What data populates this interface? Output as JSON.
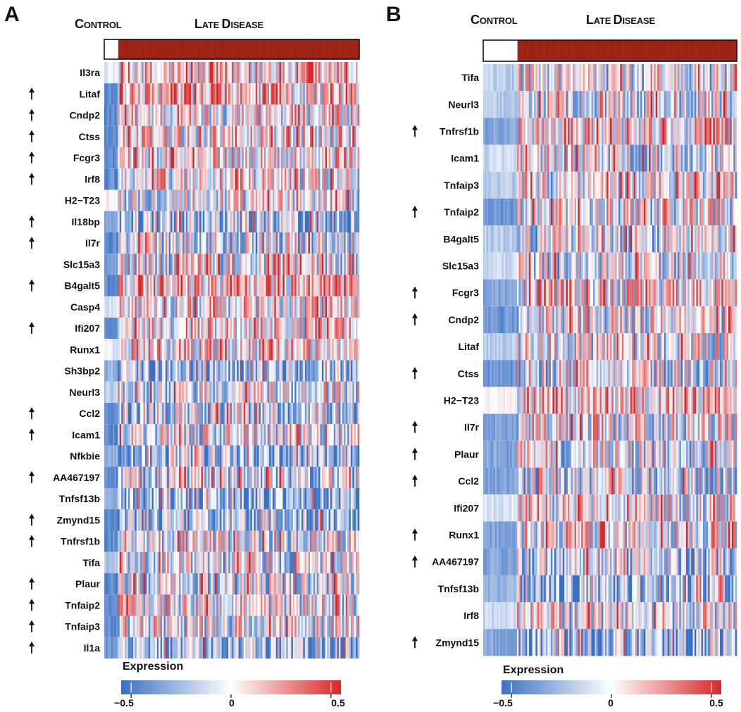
{
  "chart_data": [
    {
      "type": "heatmap",
      "panel_label": "A",
      "group_labels": {
        "control": {
          "cap": "C",
          "rest": "ONTROL"
        },
        "disease": {
          "cap1": "L",
          "rest1": "ATE ",
          "cap2": "D",
          "rest2": "ISEASE"
        }
      },
      "control_fraction": 0.055,
      "rows": [
        {
          "gene": "Il3ra",
          "up": false,
          "mean": 0.05,
          "control_mean": -0.05
        },
        {
          "gene": "Litaf",
          "up": true,
          "mean": 0.05,
          "control_mean": -0.45
        },
        {
          "gene": "Cndp2",
          "up": true,
          "mean": 0.0,
          "control_mean": -0.45
        },
        {
          "gene": "Ctss",
          "up": true,
          "mean": 0.0,
          "control_mean": -0.45
        },
        {
          "gene": "Fcgr3",
          "up": true,
          "mean": 0.0,
          "control_mean": -0.45
        },
        {
          "gene": "Irf8",
          "up": true,
          "mean": 0.0,
          "control_mean": -0.45
        },
        {
          "gene": "H2−T23",
          "up": false,
          "mean": -0.05,
          "control_mean": 0.05
        },
        {
          "gene": "Il18bp",
          "up": true,
          "mean": -0.2,
          "control_mean": -0.35
        },
        {
          "gene": "Il7r",
          "up": true,
          "mean": -0.1,
          "control_mean": -0.45
        },
        {
          "gene": "Slc15a3",
          "up": false,
          "mean": -0.05,
          "control_mean": -0.35
        },
        {
          "gene": "B4galt5",
          "up": true,
          "mean": 0.1,
          "control_mean": -0.45
        },
        {
          "gene": "Casp4",
          "up": false,
          "mean": 0.0,
          "control_mean": -0.1
        },
        {
          "gene": "Ifi207",
          "up": true,
          "mean": 0.05,
          "control_mean": -0.45
        },
        {
          "gene": "Runx1",
          "up": false,
          "mean": 0.05,
          "control_mean": -0.1
        },
        {
          "gene": "Sh3bp2",
          "up": false,
          "mean": -0.25,
          "control_mean": -0.3
        },
        {
          "gene": "Neurl3",
          "up": false,
          "mean": -0.1,
          "control_mean": -0.2
        },
        {
          "gene": "Ccl2",
          "up": true,
          "mean": -0.15,
          "control_mean": -0.45
        },
        {
          "gene": "Icam1",
          "up": true,
          "mean": -0.05,
          "control_mean": -0.45
        },
        {
          "gene": "Nfkbie",
          "up": false,
          "mean": -0.25,
          "control_mean": -0.3
        },
        {
          "gene": "AA467197",
          "up": true,
          "mean": -0.15,
          "control_mean": -0.45
        },
        {
          "gene": "Tnfsf13b",
          "up": false,
          "mean": -0.3,
          "control_mean": -0.3
        },
        {
          "gene": "Zmynd15",
          "up": true,
          "mean": -0.25,
          "control_mean": -0.45
        },
        {
          "gene": "Tnfrsf1b",
          "up": true,
          "mean": -0.05,
          "control_mean": -0.45
        },
        {
          "gene": "Tifa",
          "up": false,
          "mean": -0.1,
          "control_mean": -0.2
        },
        {
          "gene": "Plaur",
          "up": true,
          "mean": -0.1,
          "control_mean": -0.45
        },
        {
          "gene": "Tnfaip2",
          "up": true,
          "mean": -0.05,
          "control_mean": -0.45
        },
        {
          "gene": "Tnfaip3",
          "up": true,
          "mean": -0.05,
          "control_mean": -0.45
        },
        {
          "gene": "Il1a",
          "up": true,
          "mean": -0.25,
          "control_mean": -0.4
        }
      ],
      "colorbar": {
        "title": "Expression",
        "ticks": [
          "−0.5",
          "0",
          "0.5"
        ],
        "tick_values": [
          -0.5,
          0,
          0.5
        ],
        "range": [
          -0.55,
          0.55
        ]
      }
    },
    {
      "type": "heatmap",
      "panel_label": "B",
      "group_labels": {
        "control": {
          "cap": "C",
          "rest": "ONTROL"
        },
        "disease": {
          "cap1": "L",
          "rest1": "ATE ",
          "cap2": "D",
          "rest2": "ISEASE"
        }
      },
      "control_fraction": 0.135,
      "rows": [
        {
          "gene": "Tifa",
          "up": false,
          "mean": -0.1,
          "control_mean": -0.2
        },
        {
          "gene": "Neurl3",
          "up": false,
          "mean": -0.05,
          "control_mean": -0.2
        },
        {
          "gene": "Tnfrsf1b",
          "up": true,
          "mean": 0.05,
          "control_mean": -0.35
        },
        {
          "gene": "Icam1",
          "up": false,
          "mean": -0.05,
          "control_mean": -0.15
        },
        {
          "gene": "Tnfaip3",
          "up": false,
          "mean": -0.05,
          "control_mean": -0.2
        },
        {
          "gene": "Tnfaip2",
          "up": true,
          "mean": -0.05,
          "control_mean": -0.4
        },
        {
          "gene": "B4galt5",
          "up": false,
          "mean": -0.1,
          "control_mean": -0.2
        },
        {
          "gene": "Slc15a3",
          "up": false,
          "mean": -0.1,
          "control_mean": -0.15
        },
        {
          "gene": "Fcgr3",
          "up": true,
          "mean": 0.0,
          "control_mean": -0.35
        },
        {
          "gene": "Cndp2",
          "up": true,
          "mean": -0.05,
          "control_mean": -0.4
        },
        {
          "gene": "Litaf",
          "up": false,
          "mean": -0.05,
          "control_mean": -0.2
        },
        {
          "gene": "Ctss",
          "up": true,
          "mean": -0.1,
          "control_mean": -0.4
        },
        {
          "gene": "H2−T23",
          "up": false,
          "mean": 0.1,
          "control_mean": 0.0
        },
        {
          "gene": "Il7r",
          "up": true,
          "mean": -0.05,
          "control_mean": -0.35
        },
        {
          "gene": "Plaur",
          "up": true,
          "mean": -0.1,
          "control_mean": -0.35
        },
        {
          "gene": "Ccl2",
          "up": true,
          "mean": -0.1,
          "control_mean": -0.35
        },
        {
          "gene": "Ifi207",
          "up": false,
          "mean": 0.0,
          "control_mean": -0.1
        },
        {
          "gene": "Runx1",
          "up": true,
          "mean": 0.0,
          "control_mean": -0.35
        },
        {
          "gene": "AA467197",
          "up": true,
          "mean": -0.15,
          "control_mean": -0.35
        },
        {
          "gene": "Tnfsf13b",
          "up": false,
          "mean": -0.3,
          "control_mean": -0.3
        },
        {
          "gene": "Irf8",
          "up": false,
          "mean": -0.05,
          "control_mean": -0.15
        },
        {
          "gene": "Zmynd15",
          "up": true,
          "mean": -0.25,
          "control_mean": -0.35
        }
      ],
      "colorbar": {
        "title": "Expression",
        "ticks": [
          "−0.5",
          "0",
          "0.5"
        ],
        "tick_values": [
          -0.5,
          0,
          0.5
        ],
        "range": [
          -0.55,
          0.55
        ]
      }
    }
  ]
}
